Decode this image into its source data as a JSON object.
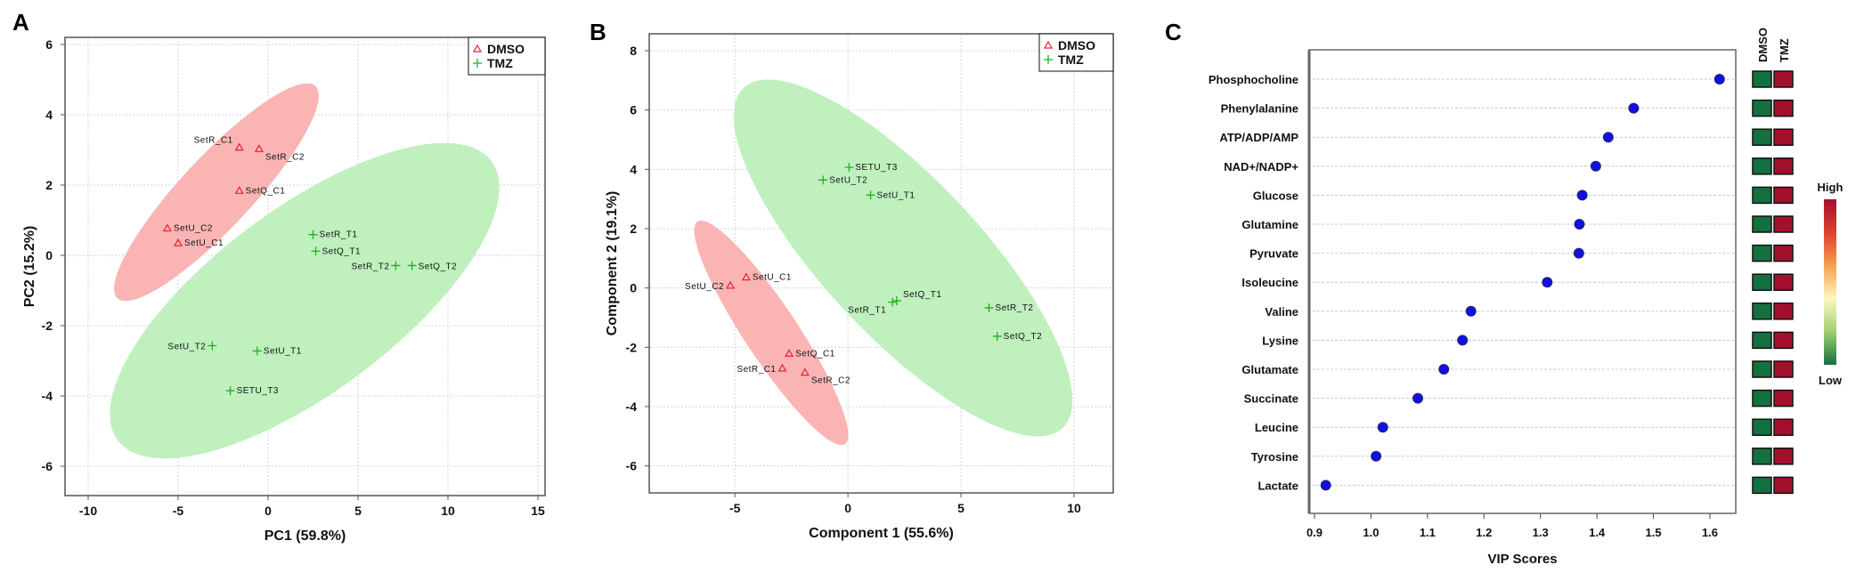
{
  "panel_labels": [
    "A",
    "B",
    "C"
  ],
  "chart_data": [
    {
      "type": "scatter",
      "panel": "A",
      "xlabel": "PC1 (59.8%)",
      "ylabel": "PC2 (15.2%)",
      "xlim": [
        -11.3,
        15.5
      ],
      "ylim": [
        -6.9,
        6.2
      ],
      "xticks": [
        -10,
        -5,
        0,
        5,
        10,
        15
      ],
      "yticks": [
        -6,
        -4,
        -2,
        0,
        2,
        4,
        6
      ],
      "grid": true,
      "legend": {
        "placement": "top-right",
        "entries": [
          {
            "name": "DMSO",
            "marker": "triangle",
            "color": "#e8202a"
          },
          {
            "name": "TMZ",
            "marker": "plus",
            "color": "#22b022"
          }
        ]
      },
      "ellipse_colors": {
        "DMSO": "#fbb4b4",
        "TMZ": "#bff0be"
      },
      "series": [
        {
          "name": "DMSO",
          "points": [
            {
              "label": "SetR_C1",
              "x": -1.6,
              "y": 3.07
            },
            {
              "label": "SetR_C2",
              "x": -0.5,
              "y": 3.03
            },
            {
              "label": "SetQ_C1",
              "x": -1.6,
              "y": 1.84
            },
            {
              "label": "SetU_C2",
              "x": -5.6,
              "y": 0.77
            },
            {
              "label": "SetU_C1",
              "x": -5.0,
              "y": 0.35
            }
          ]
        },
        {
          "name": "TMZ",
          "points": [
            {
              "label": "SetR_T1",
              "x": 2.5,
              "y": 0.59
            },
            {
              "label": "SetQ_T1",
              "x": 2.65,
              "y": 0.12
            },
            {
              "label": "SetR_T2",
              "x": 7.1,
              "y": -0.29
            },
            {
              "label": "SetQ_T2",
              "x": 8.0,
              "y": -0.29
            },
            {
              "label": "SetU_T2",
              "x": -3.1,
              "y": -2.57
            },
            {
              "label": "SetU_T1",
              "x": -0.6,
              "y": -2.72
            },
            {
              "label": "SETU_T3",
              "x": -2.1,
              "y": -3.85
            }
          ]
        }
      ]
    },
    {
      "type": "scatter",
      "panel": "B",
      "xlabel": "Component 1 (55.6%)",
      "ylabel": "Component 2 (19.1%)",
      "xlim": [
        -8.9,
        11.7
      ],
      "ylim": [
        -6.9,
        8.6
      ],
      "xticks": [
        -5,
        0,
        5,
        10
      ],
      "yticks": [
        -6,
        -4,
        -2,
        0,
        2,
        4,
        6,
        8
      ],
      "grid": true,
      "legend": {
        "placement": "top-right",
        "entries": [
          {
            "name": "DMSO",
            "marker": "triangle",
            "color": "#e8202a"
          },
          {
            "name": "TMZ",
            "marker": "plus",
            "color": "#22b022"
          }
        ]
      },
      "ellipse_colors": {
        "DMSO": "#fbb4b4",
        "TMZ": "#bff0be"
      },
      "series": [
        {
          "name": "DMSO",
          "points": [
            {
              "label": "SetU_C1",
              "x": -4.5,
              "y": 0.36
            },
            {
              "label": "SetU_C2",
              "x": -5.2,
              "y": 0.08
            },
            {
              "label": "SetQ_C1",
              "x": -2.6,
              "y": -2.21
            },
            {
              "label": "SetR_C1",
              "x": -2.9,
              "y": -2.71
            },
            {
              "label": "SetR_C2",
              "x": -1.9,
              "y": -2.85
            }
          ]
        },
        {
          "name": "TMZ",
          "points": [
            {
              "label": "SETU_T3",
              "x": 0.05,
              "y": 4.07
            },
            {
              "label": "SetU_T2",
              "x": -1.1,
              "y": 3.64
            },
            {
              "label": "SetU_T1",
              "x": 1.0,
              "y": 3.13
            },
            {
              "label": "SetR_T1",
              "x": 1.97,
              "y": -0.48
            },
            {
              "label": "SetQ_T1",
              "x": 2.16,
              "y": -0.43
            },
            {
              "label": "SetR_T2",
              "x": 6.24,
              "y": -0.67
            },
            {
              "label": "SetQ_T2",
              "x": 6.6,
              "y": -1.63
            }
          ]
        }
      ]
    },
    {
      "type": "dot",
      "panel": "C",
      "xlabel": "VIP Scores",
      "xlim": [
        0.89,
        1.645
      ],
      "xticks": [
        "0.9",
        "1.0",
        "1.1",
        "1.2",
        "1.3",
        "1.4",
        "1.5",
        "1.6"
      ],
      "point_color": "#1010e0",
      "categories": [
        "Phosphocholine",
        "Phenylalanine",
        "ATP/ADP/AMP",
        "NAD+/NADP+",
        "Glucose",
        "Glutamine",
        "Pyruvate",
        "Isoleucine",
        "Valine",
        "Lysine",
        "Glutamate",
        "Succinate",
        "Leucine",
        "Tyrosine",
        "Lactate"
      ],
      "values": [
        1.617,
        1.465,
        1.42,
        1.398,
        1.374,
        1.369,
        1.368,
        1.312,
        1.177,
        1.162,
        1.129,
        1.083,
        1.021,
        1.009,
        0.92
      ],
      "heatmap": {
        "columns": [
          "DMSO",
          "TMZ"
        ],
        "levels": {
          "DMSO": "low",
          "TMZ": "high"
        },
        "colors": {
          "low": "#15703f",
          "high": "#a3102e"
        }
      },
      "colorbar": {
        "high_label": "High",
        "low_label": "Low",
        "colors": [
          "#a3102e",
          "#e0402e",
          "#f5a050",
          "#fdf8c0",
          "#a0d070",
          "#15703f"
        ]
      }
    }
  ]
}
